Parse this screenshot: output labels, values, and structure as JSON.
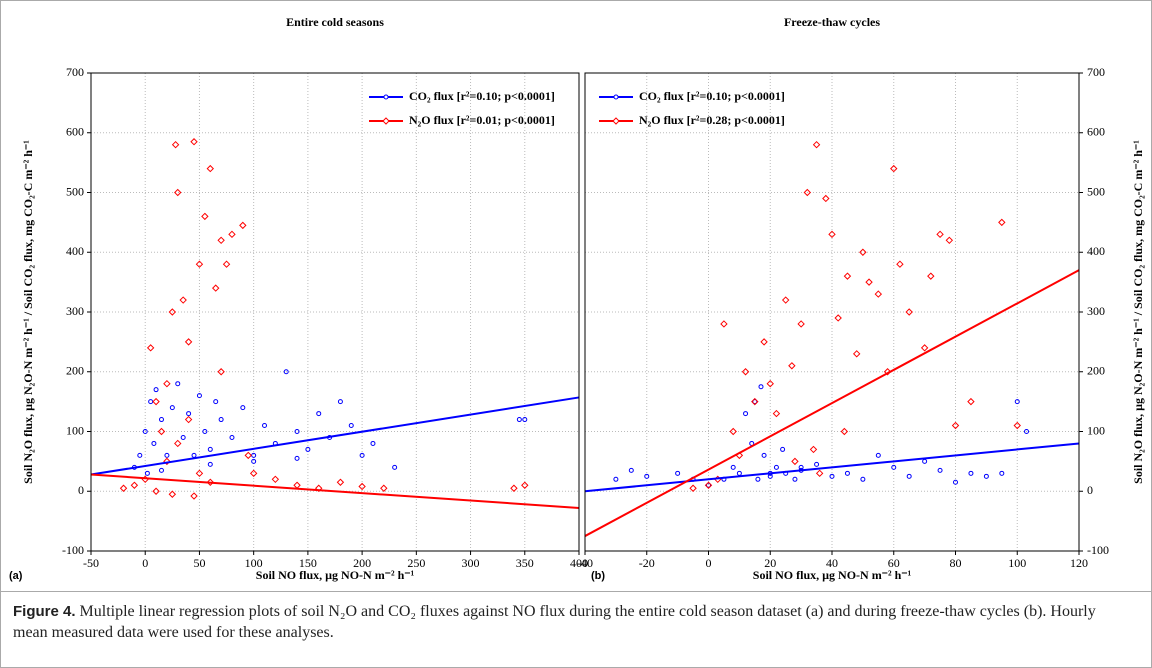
{
  "chart_data": [
    {
      "type": "scatter",
      "title": "Entire cold seasons",
      "panel_label": "(a)",
      "xlabel": "Soil NO flux, µg NO-N m⁻² h⁻¹",
      "ylabel": "Soil N₂O flux, µg N₂O-N m⁻² h⁻¹ / Soil CO₂ flux, mg CO₂-C m⁻² h⁻¹",
      "xlim": [
        -50,
        400
      ],
      "xticks": [
        -50,
        0,
        50,
        100,
        150,
        200,
        250,
        300,
        350,
        400
      ],
      "ylim": [
        -100,
        700
      ],
      "yticks": [
        -100,
        0,
        100,
        200,
        300,
        400,
        500,
        600,
        700
      ],
      "y_axis_side": "left",
      "grid": true,
      "legend": "upper right",
      "series": [
        {
          "name": "CO₂ flux [r²=0.10; p<0.0001]",
          "color": "#0000ff",
          "marker": "circle",
          "x": [
            -10,
            -5,
            0,
            2,
            5,
            8,
            10,
            15,
            20,
            25,
            30,
            35,
            40,
            45,
            50,
            55,
            60,
            65,
            70,
            80,
            90,
            100,
            110,
            120,
            130,
            140,
            150,
            160,
            170,
            180,
            190,
            200,
            210,
            230,
            345,
            350,
            15,
            60,
            100,
            140
          ],
          "values": [
            40,
            60,
            100,
            30,
            150,
            80,
            170,
            120,
            60,
            140,
            180,
            90,
            130,
            60,
            160,
            100,
            70,
            150,
            120,
            90,
            140,
            60,
            110,
            80,
            200,
            100,
            70,
            130,
            90,
            150,
            110,
            60,
            80,
            40,
            120,
            120,
            35,
            45,
            50,
            55
          ]
        },
        {
          "name": "N₂O flux [r²=0.01; p<0.0001]",
          "color": "#ff0000",
          "marker": "diamond",
          "x": [
            -20,
            -10,
            0,
            5,
            10,
            15,
            20,
            25,
            28,
            30,
            35,
            40,
            45,
            50,
            55,
            60,
            65,
            70,
            75,
            80,
            90,
            95,
            100,
            120,
            140,
            160,
            180,
            200,
            220,
            340,
            350,
            20,
            30,
            40,
            50,
            60,
            70,
            10,
            25,
            45
          ],
          "values": [
            5,
            10,
            20,
            240,
            150,
            100,
            180,
            300,
            580,
            500,
            320,
            250,
            585,
            380,
            460,
            540,
            340,
            420,
            380,
            430,
            445,
            60,
            30,
            20,
            10,
            5,
            15,
            8,
            5,
            5,
            10,
            50,
            80,
            120,
            30,
            15,
            200,
            0,
            -5,
            -8
          ]
        }
      ],
      "regression_lines": [
        {
          "color": "#0000ff",
          "x": [
            -50,
            400
          ],
          "values": [
            28,
            157
          ]
        },
        {
          "color": "#ff0000",
          "x": [
            -50,
            400
          ],
          "values": [
            28,
            -28
          ]
        }
      ]
    },
    {
      "type": "scatter",
      "title": "Freeze-thaw cycles",
      "panel_label": "(b)",
      "xlabel": "Soil NO flux, µg NO-N m⁻² h⁻¹",
      "ylabel": "Soil N₂O flux, µg N₂O-N m⁻² h⁻¹ / Soil CO₂ flux, mg CO₂-C m⁻² h⁻¹",
      "xlim": [
        -40,
        120
      ],
      "xticks": [
        -40,
        -20,
        0,
        20,
        40,
        60,
        80,
        100,
        120
      ],
      "ylim": [
        -100,
        700
      ],
      "yticks": [
        -100,
        0,
        100,
        200,
        300,
        400,
        500,
        600,
        700
      ],
      "y_axis_side": "right",
      "grid": true,
      "legend": "upper left",
      "series": [
        {
          "name": "CO₂ flux [r²=0.10; p<0.0001]",
          "color": "#0000ff",
          "marker": "circle",
          "x": [
            -30,
            -25,
            -20,
            -10,
            -5,
            0,
            5,
            8,
            10,
            12,
            15,
            17,
            18,
            20,
            22,
            25,
            28,
            30,
            35,
            40,
            45,
            50,
            55,
            60,
            65,
            70,
            75,
            80,
            85,
            90,
            95,
            100,
            103,
            14,
            16,
            20,
            24,
            30
          ],
          "values": [
            20,
            35,
            25,
            30,
            20,
            10,
            20,
            40,
            30,
            130,
            150,
            175,
            60,
            25,
            40,
            30,
            20,
            35,
            45,
            25,
            30,
            20,
            60,
            40,
            25,
            50,
            35,
            15,
            30,
            25,
            30,
            150,
            100,
            80,
            20,
            30,
            70,
            40
          ]
        },
        {
          "name": "N₂O flux [r²=0.28; p<0.0001]",
          "color": "#ff0000",
          "marker": "diamond",
          "x": [
            -5,
            0,
            3,
            5,
            8,
            10,
            12,
            15,
            18,
            20,
            22,
            25,
            27,
            30,
            32,
            35,
            38,
            40,
            42,
            45,
            48,
            50,
            52,
            55,
            58,
            60,
            62,
            65,
            70,
            72,
            75,
            78,
            80,
            85,
            95,
            100,
            34,
            36,
            28,
            44
          ],
          "values": [
            5,
            10,
            20,
            280,
            100,
            60,
            200,
            150,
            250,
            180,
            130,
            320,
            210,
            280,
            500,
            580,
            490,
            430,
            290,
            360,
            230,
            400,
            350,
            330,
            200,
            540,
            380,
            300,
            240,
            360,
            430,
            420,
            110,
            150,
            450,
            110,
            70,
            30,
            50,
            100
          ]
        }
      ],
      "regression_lines": [
        {
          "color": "#0000ff",
          "x": [
            -40,
            120
          ],
          "values": [
            0,
            80
          ]
        },
        {
          "color": "#ff0000",
          "x": [
            -40,
            120
          ],
          "values": [
            -75,
            370
          ]
        }
      ]
    }
  ],
  "caption": {
    "label": "Figure 4.",
    "text": "Multiple linear regression plots of soil N₂O and CO₂ fluxes against NO flux during the entire cold season dataset (a) and during freeze-thaw cycles (b). Hourly mean measured data were used for these analyses."
  }
}
